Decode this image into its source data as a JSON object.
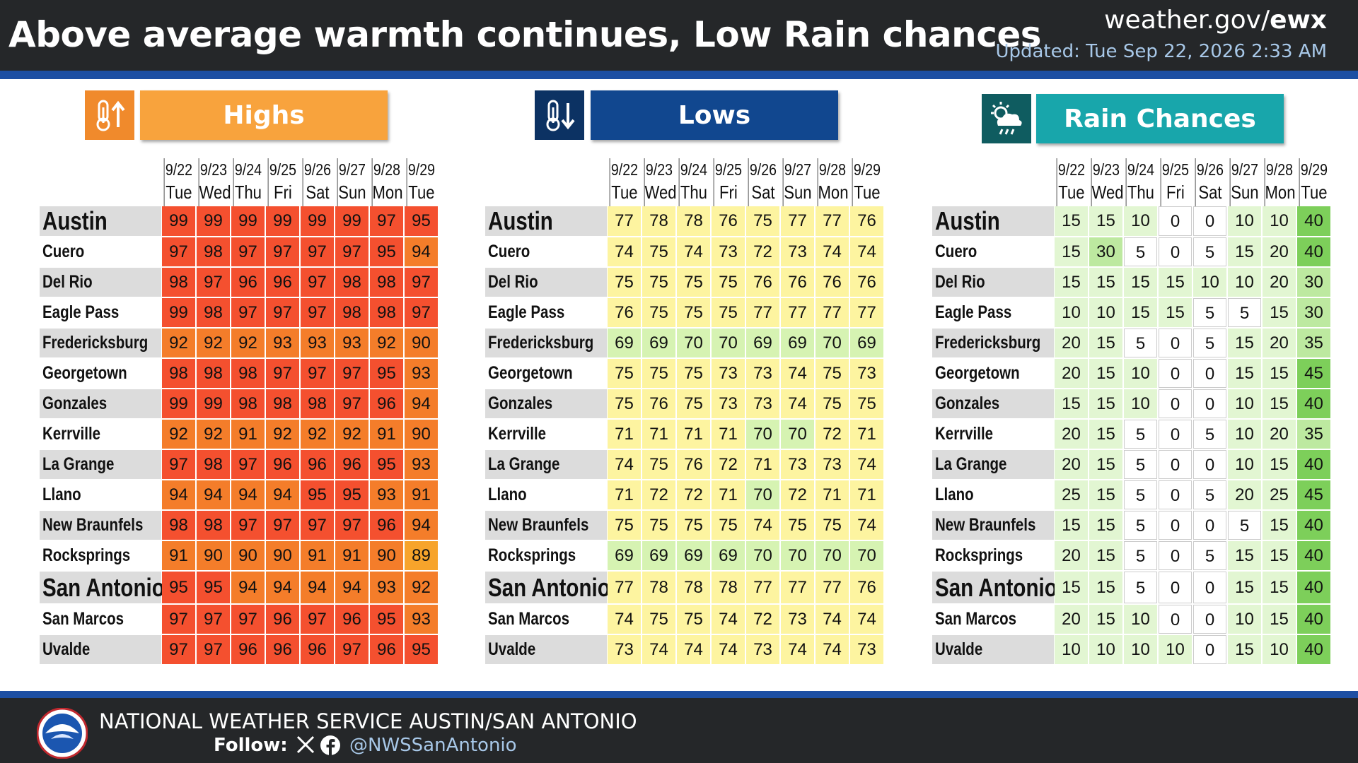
{
  "header": {
    "title": "Above average warmth continues, Low Rain chances",
    "site_prefix": "weather.gov/",
    "site_bold": "ewx",
    "updated": "Updated: Tue Sep 22, 2026 2:33 AM"
  },
  "colors": {
    "header_bg": "#252729",
    "accent_blue": "#1d4fa3",
    "highs_label": "#f8a33d",
    "highs_icon": "#f08a2c",
    "lows_label": "#11478f",
    "lows_icon": "#0c3263",
    "rain_label": "#18a6ab",
    "rain_icon": "#0f5c60"
  },
  "sections": {
    "highs": {
      "label": "Highs",
      "icon": "thermometer-up-icon"
    },
    "lows": {
      "label": "Lows",
      "icon": "thermometer-down-icon"
    },
    "rain": {
      "label": "Rain Chances",
      "icon": "sun-cloud-rain-icon"
    }
  },
  "dates": [
    {
      "date": "9/22",
      "day": "Tue"
    },
    {
      "date": "9/23",
      "day": "Wed"
    },
    {
      "date": "9/24",
      "day": "Thu"
    },
    {
      "date": "9/25",
      "day": "Fri"
    },
    {
      "date": "9/26",
      "day": "Sat"
    },
    {
      "date": "9/27",
      "day": "Sun"
    },
    {
      "date": "9/28",
      "day": "Mon"
    },
    {
      "date": "9/29",
      "day": "Tue"
    }
  ],
  "cities": [
    {
      "name": "Austin",
      "major": true,
      "highs": [
        99,
        99,
        99,
        99,
        99,
        99,
        97,
        95
      ],
      "lows": [
        77,
        78,
        78,
        76,
        75,
        77,
        77,
        76
      ],
      "rain": [
        15,
        15,
        10,
        0,
        0,
        10,
        10,
        40
      ]
    },
    {
      "name": "Cuero",
      "major": false,
      "highs": [
        97,
        98,
        97,
        97,
        97,
        97,
        95,
        94
      ],
      "lows": [
        74,
        75,
        74,
        73,
        72,
        73,
        74,
        74
      ],
      "rain": [
        15,
        30,
        5,
        0,
        5,
        15,
        20,
        40
      ]
    },
    {
      "name": "Del Rio",
      "major": false,
      "highs": [
        98,
        97,
        96,
        96,
        97,
        98,
        98,
        97
      ],
      "lows": [
        75,
        75,
        75,
        75,
        76,
        76,
        76,
        76
      ],
      "rain": [
        15,
        15,
        15,
        15,
        10,
        10,
        20,
        30
      ]
    },
    {
      "name": "Eagle Pass",
      "major": false,
      "highs": [
        99,
        98,
        97,
        97,
        97,
        98,
        98,
        97
      ],
      "lows": [
        76,
        75,
        75,
        75,
        77,
        77,
        77,
        77
      ],
      "rain": [
        10,
        10,
        15,
        15,
        5,
        5,
        15,
        30
      ]
    },
    {
      "name": "Fredericksburg",
      "major": false,
      "highs": [
        92,
        92,
        92,
        93,
        93,
        93,
        92,
        90
      ],
      "lows": [
        69,
        69,
        70,
        70,
        69,
        69,
        70,
        69
      ],
      "rain": [
        20,
        15,
        5,
        0,
        5,
        15,
        20,
        35
      ]
    },
    {
      "name": "Georgetown",
      "major": false,
      "highs": [
        98,
        98,
        98,
        97,
        97,
        97,
        95,
        93
      ],
      "lows": [
        75,
        75,
        75,
        73,
        73,
        74,
        75,
        73
      ],
      "rain": [
        20,
        15,
        10,
        0,
        0,
        15,
        15,
        45
      ]
    },
    {
      "name": "Gonzales",
      "major": false,
      "highs": [
        99,
        99,
        98,
        98,
        98,
        97,
        96,
        94
      ],
      "lows": [
        75,
        76,
        75,
        73,
        73,
        74,
        75,
        75
      ],
      "rain": [
        15,
        15,
        10,
        0,
        0,
        10,
        15,
        40
      ]
    },
    {
      "name": "Kerrville",
      "major": false,
      "highs": [
        92,
        92,
        91,
        92,
        92,
        92,
        91,
        90
      ],
      "lows": [
        71,
        71,
        71,
        71,
        70,
        70,
        72,
        71
      ],
      "rain": [
        20,
        15,
        5,
        0,
        5,
        10,
        20,
        35
      ]
    },
    {
      "name": "La Grange",
      "major": false,
      "highs": [
        97,
        98,
        97,
        96,
        96,
        96,
        95,
        93
      ],
      "lows": [
        74,
        75,
        76,
        72,
        71,
        73,
        73,
        74
      ],
      "rain": [
        20,
        15,
        5,
        0,
        0,
        10,
        15,
        40
      ]
    },
    {
      "name": "Llano",
      "major": false,
      "highs": [
        94,
        94,
        94,
        94,
        95,
        95,
        93,
        91
      ],
      "lows": [
        71,
        72,
        72,
        71,
        70,
        72,
        71,
        71
      ],
      "rain": [
        25,
        15,
        5,
        0,
        5,
        20,
        25,
        45
      ]
    },
    {
      "name": "New Braunfels",
      "major": false,
      "highs": [
        98,
        98,
        97,
        97,
        97,
        97,
        96,
        94
      ],
      "lows": [
        75,
        75,
        75,
        75,
        74,
        75,
        75,
        74
      ],
      "rain": [
        15,
        15,
        5,
        0,
        0,
        5,
        15,
        40
      ]
    },
    {
      "name": "Rocksprings",
      "major": false,
      "highs": [
        91,
        90,
        90,
        90,
        91,
        91,
        90,
        89
      ],
      "lows": [
        69,
        69,
        69,
        69,
        70,
        70,
        70,
        70
      ],
      "rain": [
        20,
        15,
        5,
        0,
        5,
        15,
        15,
        40
      ]
    },
    {
      "name": "San Antonio",
      "major": true,
      "highs": [
        95,
        95,
        94,
        94,
        94,
        94,
        93,
        92
      ],
      "lows": [
        77,
        78,
        78,
        78,
        77,
        77,
        77,
        76
      ],
      "rain": [
        15,
        15,
        5,
        0,
        0,
        15,
        15,
        40
      ]
    },
    {
      "name": "San Marcos",
      "major": false,
      "highs": [
        97,
        97,
        97,
        96,
        97,
        96,
        95,
        93
      ],
      "lows": [
        74,
        75,
        75,
        74,
        72,
        73,
        74,
        74
      ],
      "rain": [
        20,
        15,
        10,
        0,
        0,
        10,
        15,
        40
      ]
    },
    {
      "name": "Uvalde",
      "major": false,
      "highs": [
        97,
        97,
        96,
        96,
        96,
        97,
        96,
        95
      ],
      "lows": [
        73,
        74,
        74,
        74,
        73,
        74,
        74,
        73
      ],
      "rain": [
        10,
        10,
        10,
        10,
        0,
        15,
        10,
        40
      ]
    }
  ],
  "footer": {
    "org": "NATIONAL WEATHER SERVICE AUSTIN/SAN ANTONIO",
    "follow": "Follow:",
    "handle": "@NWSSanAntonio"
  }
}
